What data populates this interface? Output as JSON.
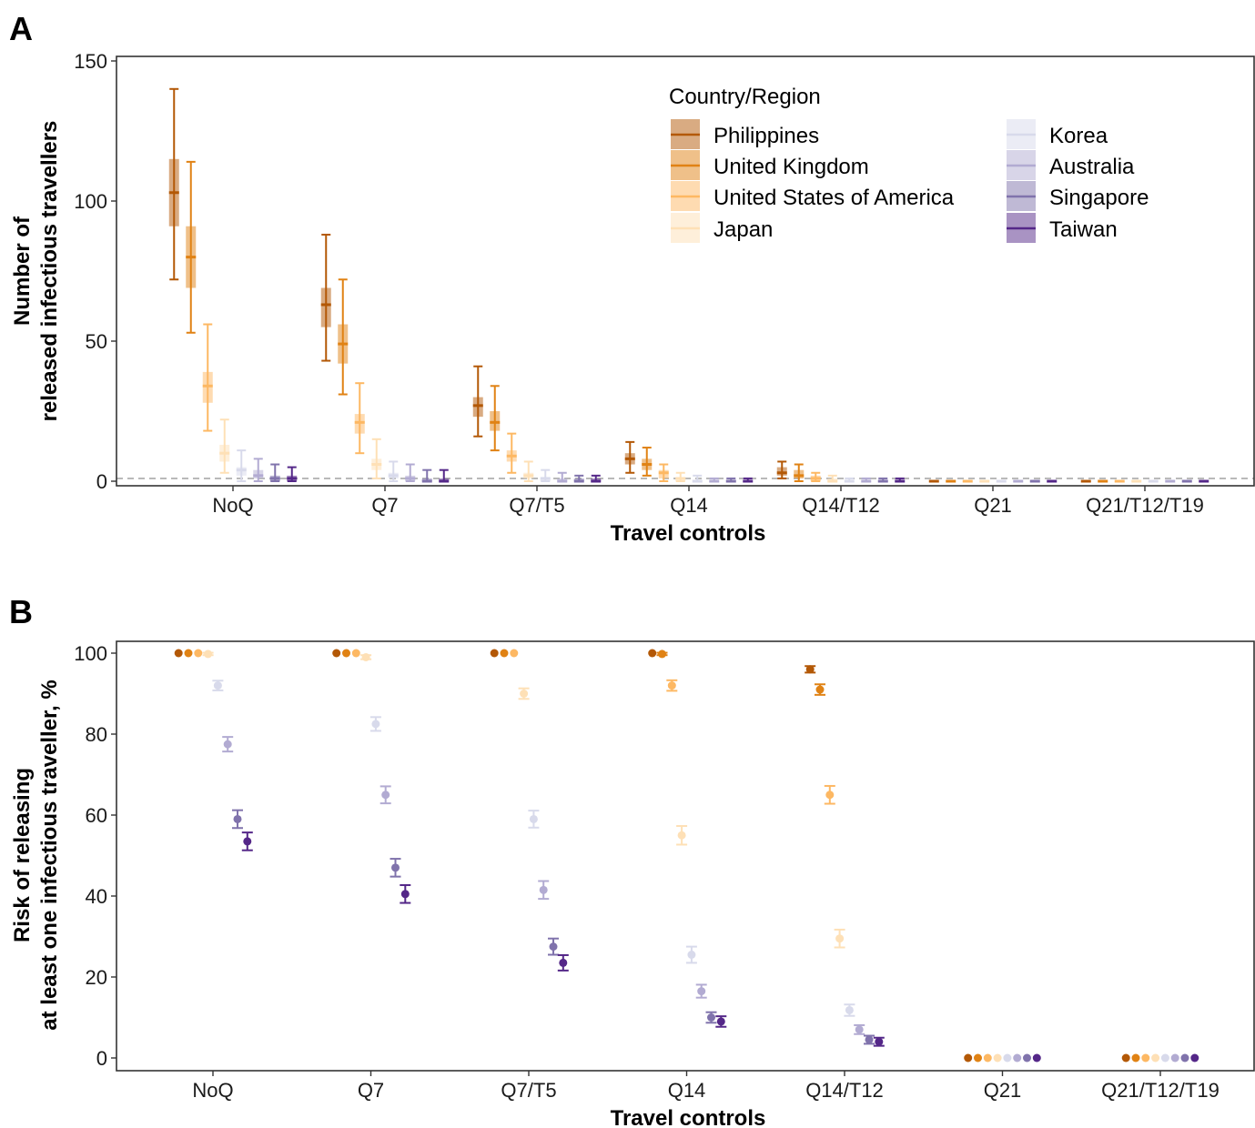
{
  "chart_data": [
    {
      "panel_label": "A",
      "type": "box",
      "xlabel": "Travel controls",
      "ylabel_lines": [
        "Number of",
        "released infectious travellers"
      ],
      "ylim": [
        0,
        150
      ],
      "yticks": [
        0,
        50,
        100,
        150
      ],
      "reference_line": 1,
      "categories": [
        "NoQ",
        "Q7",
        "Q7/T5",
        "Q14",
        "Q14/T12",
        "Q21",
        "Q21/T12/T19"
      ],
      "legend": {
        "title": "Country/Region",
        "position": "top-right",
        "columns": [
          [
            "Philippines",
            "United Kingdom",
            "United States of America",
            "Japan"
          ],
          [
            "Korea",
            "Australia",
            "Singapore",
            "Taiwan"
          ]
        ]
      },
      "series": [
        {
          "name": "Philippines",
          "color": "#b35806",
          "box": [
            [
              72,
              91,
              103,
              115,
              140
            ],
            [
              43,
              55,
              63,
              69,
              88
            ],
            [
              16,
              23,
              27,
              30,
              41
            ],
            [
              3,
              6,
              8,
              10,
              14
            ],
            [
              1,
              2,
              3,
              5,
              7
            ],
            [
              0,
              0,
              0,
              0,
              0
            ],
            [
              0,
              0,
              0,
              0,
              0
            ]
          ]
        },
        {
          "name": "United Kingdom",
          "color": "#e08214",
          "box": [
            [
              53,
              69,
              80,
              91,
              114
            ],
            [
              31,
              42,
              49,
              56,
              72
            ],
            [
              11,
              18,
              21,
              25,
              34
            ],
            [
              2,
              4,
              6,
              8,
              12
            ],
            [
              0,
              1,
              2,
              4,
              6
            ],
            [
              0,
              0,
              0,
              0,
              0
            ],
            [
              0,
              0,
              0,
              0,
              0
            ]
          ]
        },
        {
          "name": "United States of America",
          "color": "#fdb863",
          "box": [
            [
              18,
              28,
              34,
              39,
              56
            ],
            [
              10,
              17,
              21,
              24,
              35
            ],
            [
              3,
              7,
              9,
              11,
              17
            ],
            [
              0,
              1,
              3,
              4,
              6
            ],
            [
              0,
              0,
              1,
              2,
              3
            ],
            [
              0,
              0,
              0,
              0,
              0
            ],
            [
              0,
              0,
              0,
              0,
              0
            ]
          ]
        },
        {
          "name": "Japan",
          "color": "#fee0b6",
          "box": [
            [
              3,
              7,
              10,
              13,
              22
            ],
            [
              1,
              4,
              6,
              8,
              15
            ],
            [
              0,
              1,
              2,
              3,
              7
            ],
            [
              0,
              0,
              1,
              1,
              3
            ],
            [
              0,
              0,
              0,
              1,
              2
            ],
            [
              0,
              0,
              0,
              0,
              0
            ],
            [
              0,
              0,
              0,
              0,
              0
            ]
          ]
        },
        {
          "name": "Korea",
          "color": "#d8daeb",
          "box": [
            [
              0,
              2,
              4,
              5,
              11
            ],
            [
              0,
              1,
              2,
              3,
              7
            ],
            [
              0,
              0,
              1,
              1,
              4
            ],
            [
              0,
              0,
              0,
              0,
              2
            ],
            [
              0,
              0,
              0,
              0,
              1
            ],
            [
              0,
              0,
              0,
              0,
              0
            ],
            [
              0,
              0,
              0,
              0,
              0
            ]
          ]
        },
        {
          "name": "Australia",
          "color": "#b2abd2",
          "box": [
            [
              0,
              1,
              2,
              4,
              8
            ],
            [
              0,
              0,
              1,
              2,
              6
            ],
            [
              0,
              0,
              0,
              1,
              3
            ],
            [
              0,
              0,
              0,
              0,
              1
            ],
            [
              0,
              0,
              0,
              0,
              1
            ],
            [
              0,
              0,
              0,
              0,
              0
            ],
            [
              0,
              0,
              0,
              0,
              0
            ]
          ]
        },
        {
          "name": "Singapore",
          "color": "#8073ac",
          "box": [
            [
              0,
              0,
              1,
              2,
              6
            ],
            [
              0,
              0,
              0,
              1,
              4
            ],
            [
              0,
              0,
              0,
              1,
              2
            ],
            [
              0,
              0,
              0,
              0,
              1
            ],
            [
              0,
              0,
              0,
              0,
              1
            ],
            [
              0,
              0,
              0,
              0,
              0
            ],
            [
              0,
              0,
              0,
              0,
              0
            ]
          ]
        },
        {
          "name": "Taiwan",
          "color": "#542788",
          "box": [
            [
              0,
              0,
              1,
              2,
              5
            ],
            [
              0,
              0,
              0,
              1,
              4
            ],
            [
              0,
              0,
              0,
              1,
              2
            ],
            [
              0,
              0,
              0,
              0,
              1
            ],
            [
              0,
              0,
              0,
              0,
              1
            ],
            [
              0,
              0,
              0,
              0,
              0
            ],
            [
              0,
              0,
              0,
              0,
              0
            ]
          ]
        }
      ]
    },
    {
      "panel_label": "B",
      "type": "scatter",
      "xlabel": "Travel controls",
      "ylabel_lines": [
        "Risk of releasing",
        "at least one infectious traveller, %"
      ],
      "ylim": [
        0,
        100
      ],
      "yticks": [
        0,
        20,
        40,
        60,
        80,
        100
      ],
      "categories": [
        "NoQ",
        "Q7",
        "Q7/T5",
        "Q14",
        "Q14/T12",
        "Q21",
        "Q21/T12/T19"
      ],
      "series": [
        {
          "name": "Philippines",
          "color": "#b35806",
          "values": [
            100,
            100,
            100,
            100,
            96,
            0,
            0
          ],
          "errors": [
            0,
            0,
            0,
            0,
            0.8,
            0,
            0
          ]
        },
        {
          "name": "United Kingdom",
          "color": "#e08214",
          "values": [
            100,
            100,
            100,
            99.8,
            91,
            0,
            0
          ],
          "errors": [
            0,
            0,
            0,
            0.3,
            1.3,
            0,
            0
          ]
        },
        {
          "name": "United States of America",
          "color": "#fdb863",
          "values": [
            100,
            100,
            100,
            92,
            65,
            0,
            0
          ],
          "errors": [
            0,
            0,
            0,
            1.3,
            2.2,
            0,
            0
          ]
        },
        {
          "name": "Japan",
          "color": "#fee0b6",
          "values": [
            99.8,
            99,
            90,
            55,
            29.5,
            0,
            0
          ],
          "errors": [
            0.3,
            0.5,
            1.3,
            2.3,
            2.2,
            0,
            0
          ]
        },
        {
          "name": "Korea",
          "color": "#d8daeb",
          "values": [
            92,
            82.5,
            59,
            25.5,
            11.8,
            0,
            0
          ],
          "errors": [
            1.2,
            1.7,
            2.1,
            2,
            1.4,
            0,
            0
          ]
        },
        {
          "name": "Australia",
          "color": "#b2abd2",
          "values": [
            77.5,
            65,
            41.5,
            16.5,
            7,
            0,
            0
          ],
          "errors": [
            1.8,
            2.1,
            2.2,
            1.6,
            1.1,
            0,
            0
          ]
        },
        {
          "name": "Singapore",
          "color": "#8073ac",
          "values": [
            59,
            47,
            27.5,
            10,
            4.5,
            0,
            0
          ],
          "errors": [
            2.2,
            2.2,
            2,
            1.3,
            1,
            0,
            0
          ]
        },
        {
          "name": "Taiwan",
          "color": "#542788",
          "values": [
            53.5,
            40.5,
            23.5,
            9,
            4,
            0,
            0
          ],
          "errors": [
            2.2,
            2.2,
            1.9,
            1.3,
            1,
            0,
            0
          ]
        }
      ]
    }
  ]
}
